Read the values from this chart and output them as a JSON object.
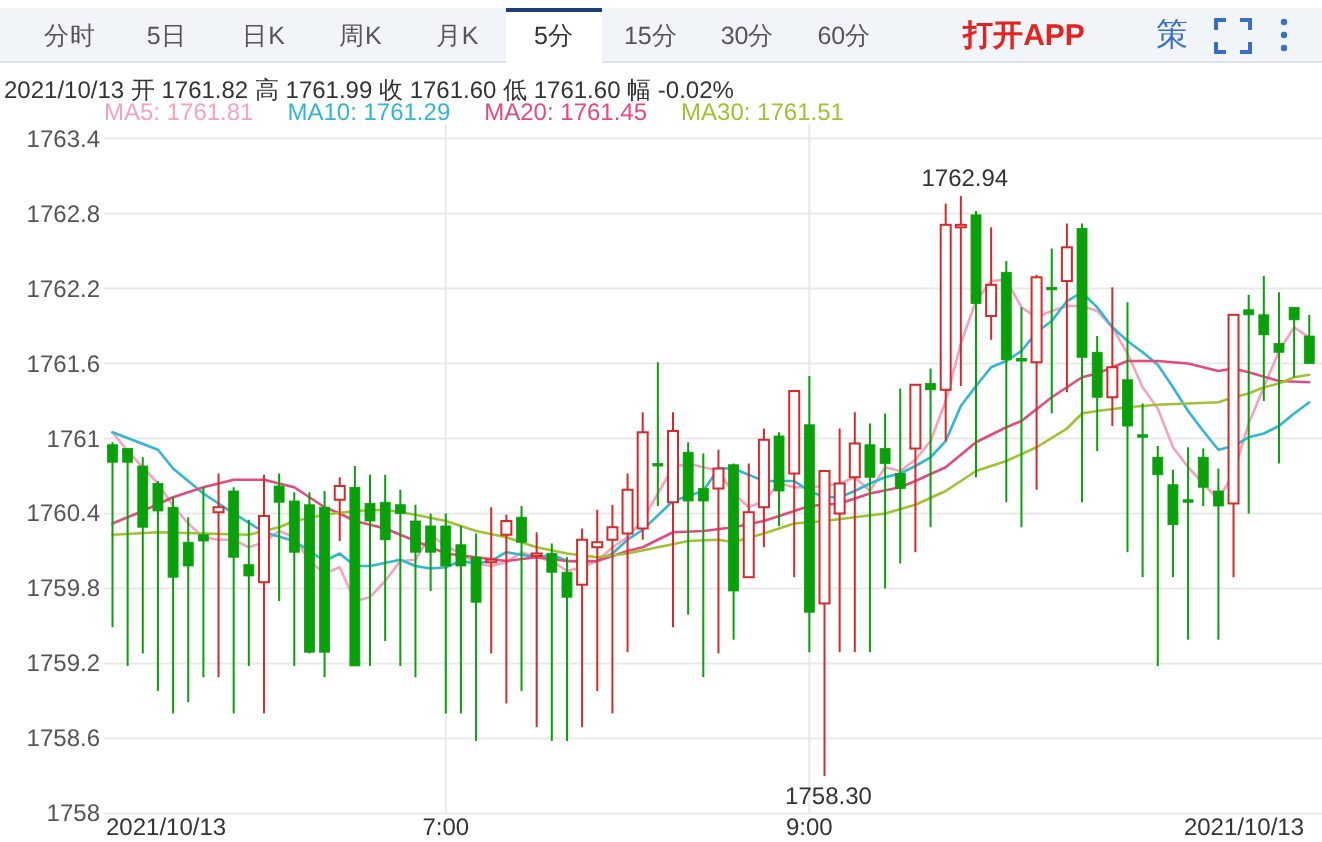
{
  "chart_data": {
    "type": "candlestick",
    "title": "2021/10/13 开 1761.82 高 1761.99 收 1761.60 低 1761.60 幅 -0.02%",
    "x": [
      5.1667,
      5.25,
      5.3333,
      5.4167,
      5.5,
      5.5833,
      5.6667,
      5.75,
      5.8333,
      5.9167,
      6,
      6.0833,
      6.1667,
      6.25,
      6.3333,
      6.4167,
      6.5,
      6.5833,
      6.6667,
      6.75,
      6.8333,
      6.9167,
      7,
      7.0833,
      7.1667,
      7.25,
      7.3333,
      7.4167,
      7.5,
      7.5833,
      7.6667,
      7.75,
      7.8333,
      7.9167,
      8,
      8.0833,
      8.1667,
      8.25,
      8.3333,
      8.4167,
      8.5,
      8.5833,
      8.6667,
      8.75,
      8.8333,
      8.9167,
      9,
      9.0833,
      9.1667,
      9.25,
      9.3333,
      9.4167,
      9.5,
      9.5833,
      9.6667,
      9.75,
      9.8333,
      9.9167,
      10,
      10.0833,
      10.1667,
      10.25,
      10.3333,
      10.4167,
      10.5,
      10.5833,
      10.6667,
      10.75,
      10.8333,
      10.9167,
      11,
      11.0833,
      11.1667,
      11.25,
      11.3333,
      11.4167,
      11.5,
      11.5833,
      11.6667,
      11.75
    ],
    "ohlc": [
      [
        1760.95,
        1760.97,
        1759.49,
        1760.81
      ],
      [
        1760.92,
        1760.92,
        1759.18,
        1760.81
      ],
      [
        1760.78,
        1760.85,
        1759.28,
        1760.29
      ],
      [
        1760.64,
        1760.66,
        1758.98,
        1760.42
      ],
      [
        1760.45,
        1760.53,
        1758.8,
        1759.89
      ],
      [
        1760.17,
        1760.37,
        1758.89,
        1759.98
      ],
      [
        1760.23,
        1760.61,
        1759.09,
        1760.18
      ],
      [
        1760.41,
        1760.72,
        1759.09,
        1760.45
      ],
      [
        1760.58,
        1760.61,
        1758.8,
        1760.05
      ],
      [
        1759.99,
        1760.35,
        1759.18,
        1759.9
      ],
      [
        1759.85,
        1760.71,
        1758.8,
        1760.38
      ],
      [
        1760.62,
        1760.72,
        1759.7,
        1760.49
      ],
      [
        1760.5,
        1760.57,
        1759.18,
        1760.09
      ],
      [
        1760.47,
        1760.57,
        1759.28,
        1759.29
      ],
      [
        1760.45,
        1760.58,
        1759.09,
        1759.29
      ],
      [
        1760.51,
        1760.69,
        1760.18,
        1760.62
      ],
      [
        1760.61,
        1760.78,
        1759.18,
        1759.18
      ],
      [
        1760.48,
        1760.71,
        1759.18,
        1760.34
      ],
      [
        1760.49,
        1760.71,
        1759.38,
        1760.19
      ],
      [
        1760.47,
        1760.59,
        1759.18,
        1760.4
      ],
      [
        1760.34,
        1760.47,
        1759.09,
        1760.09
      ],
      [
        1760.3,
        1760.4,
        1759.78,
        1760.09
      ],
      [
        1760.3,
        1760.4,
        1758.8,
        1759.98
      ],
      [
        1760.15,
        1760.3,
        1758.8,
        1759.98
      ],
      [
        1760.05,
        1760.24,
        1758.58,
        1759.69
      ],
      [
        1760.01,
        1760.45,
        1759.28,
        1760.03
      ],
      [
        1760.23,
        1760.39,
        1758.88,
        1760.34
      ],
      [
        1760.37,
        1760.46,
        1758.98,
        1760.17
      ],
      [
        1760.06,
        1760.25,
        1758.69,
        1760.08
      ],
      [
        1760.08,
        1760.16,
        1758.58,
        1759.93
      ],
      [
        1759.93,
        1760.05,
        1758.58,
        1759.73
      ],
      [
        1759.83,
        1760.28,
        1758.69,
        1760.19
      ],
      [
        1760.13,
        1760.43,
        1758.98,
        1760.17
      ],
      [
        1760.19,
        1760.47,
        1758.8,
        1760.29
      ],
      [
        1760.24,
        1760.72,
        1759.29,
        1760.59
      ],
      [
        1760.28,
        1761.21,
        1760.19,
        1761.05
      ],
      [
        1760.8,
        1761.61,
        1760.46,
        1760.78
      ],
      [
        1760.49,
        1761.21,
        1759.49,
        1761.06
      ],
      [
        1760.89,
        1760.97,
        1759.59,
        1760.5
      ],
      [
        1760.6,
        1760.88,
        1759.09,
        1760.5
      ],
      [
        1760.6,
        1760.91,
        1759.28,
        1760.76
      ],
      [
        1760.79,
        1760.8,
        1759.39,
        1759.78
      ],
      [
        1759.89,
        1760.8,
        1759.89,
        1760.41
      ],
      [
        1760.45,
        1761.08,
        1760.13,
        1760.99
      ],
      [
        1761.02,
        1761.05,
        1760.3,
        1760.58
      ],
      [
        1760.72,
        1761.38,
        1759.89,
        1761.38
      ],
      [
        1761.11,
        1761.5,
        1759.29,
        1759.61
      ],
      [
        1759.68,
        1760.74,
        1758.3,
        1760.74
      ],
      [
        1760.4,
        1761.08,
        1759.29,
        1760.64
      ],
      [
        1760.69,
        1761.21,
        1759.29,
        1760.96
      ],
      [
        1760.95,
        1761.12,
        1759.29,
        1760.69
      ],
      [
        1760.92,
        1761.2,
        1759.8,
        1760.8
      ],
      [
        1760.72,
        1761.4,
        1760.0,
        1760.6
      ],
      [
        1760.92,
        1761.43,
        1760.09,
        1761.43
      ],
      [
        1761.44,
        1761.56,
        1760.29,
        1761.39
      ],
      [
        1761.39,
        1762.88,
        1760.98,
        1762.71
      ],
      [
        1762.69,
        1762.94,
        1761.42,
        1762.71
      ],
      [
        1762.79,
        1762.82,
        1760.69,
        1762.08
      ],
      [
        1761.98,
        1762.69,
        1761.79,
        1762.23
      ],
      [
        1762.33,
        1762.42,
        1760.49,
        1761.63
      ],
      [
        1761.64,
        1762.05,
        1760.29,
        1761.62
      ],
      [
        1761.61,
        1762.31,
        1760.59,
        1762.29
      ],
      [
        1762.21,
        1762.52,
        1761.2,
        1762.19
      ],
      [
        1762.26,
        1762.72,
        1761.37,
        1762.53
      ],
      [
        1762.68,
        1762.72,
        1760.49,
        1761.65
      ],
      [
        1761.69,
        1761.82,
        1760.9,
        1761.33
      ],
      [
        1761.33,
        1762.21,
        1761.1,
        1761.57
      ],
      [
        1761.47,
        1762.09,
        1760.09,
        1761.1
      ],
      [
        1761.03,
        1761.28,
        1759.89,
        1761.01
      ],
      [
        1760.85,
        1760.94,
        1759.18,
        1760.71
      ],
      [
        1760.63,
        1760.75,
        1759.89,
        1760.31
      ],
      [
        1760.51,
        1760.93,
        1759.39,
        1760.49
      ],
      [
        1760.85,
        1760.92,
        1760.46,
        1760.61
      ],
      [
        1760.58,
        1760.76,
        1759.39,
        1760.46
      ],
      [
        1760.48,
        1761.99,
        1759.89,
        1761.99
      ],
      [
        1762.03,
        1762.15,
        1760.4,
        1761.99
      ],
      [
        1761.99,
        1762.3,
        1761.3,
        1761.83
      ],
      [
        1761.76,
        1762.17,
        1760.8,
        1761.69
      ],
      [
        1762.05,
        1762.05,
        1761.49,
        1761.95
      ],
      [
        1761.82,
        1761.99,
        1761.6,
        1761.6
      ]
    ],
    "colors": [
      "#0aa00a",
      "#0aa00a",
      "#0aa00a",
      "#0aa00a",
      "#0aa00a",
      "#0aa00a",
      "#0aa00a",
      "#d42a2a",
      "#0aa00a",
      "#0aa00a",
      "#d42a2a",
      "#0aa00a",
      "#0aa00a",
      "#0aa00a",
      "#0aa00a",
      "#d42a2a",
      "#0aa00a",
      "#0aa00a",
      "#0aa00a",
      "#0aa00a",
      "#0aa00a",
      "#0aa00a",
      "#0aa00a",
      "#0aa00a",
      "#0aa00a",
      "#d42a2a",
      "#d42a2a",
      "#0aa00a",
      "#d42a2a",
      "#0aa00a",
      "#0aa00a",
      "#d42a2a",
      "#d42a2a",
      "#d42a2a",
      "#d42a2a",
      "#d42a2a",
      "#0aa00a",
      "#d42a2a",
      "#0aa00a",
      "#0aa00a",
      "#d42a2a",
      "#0aa00a",
      "#d42a2a",
      "#d42a2a",
      "#0aa00a",
      "#d42a2a",
      "#0aa00a",
      "#d42a2a",
      "#d42a2a",
      "#d42a2a",
      "#0aa00a",
      "#0aa00a",
      "#0aa00a",
      "#d42a2a",
      "#0aa00a",
      "#d42a2a",
      "#d42a2a",
      "#0aa00a",
      "#d42a2a",
      "#0aa00a",
      "#0aa00a",
      "#d42a2a",
      "#0aa00a",
      "#d42a2a",
      "#0aa00a",
      "#0aa00a",
      "#d42a2a",
      "#0aa00a",
      "#0aa00a",
      "#0aa00a",
      "#0aa00a",
      "#0aa00a",
      "#0aa00a",
      "#0aa00a",
      "#d42a2a",
      "#0aa00a",
      "#0aa00a",
      "#0aa00a",
      "#0aa00a",
      "#0aa00a"
    ],
    "series": [
      {
        "name": "MA5: 1761.81",
        "type": "line",
        "color": "#f3a2bf",
        "values": [
          1761.05,
          1760.9,
          1760.77,
          1760.64,
          1760.46,
          1760.32,
          1760.21,
          1760.19,
          1760.19,
          1760.13,
          1760.17,
          1760.26,
          1760.21,
          1760.02,
          1759.92,
          1759.97,
          1759.7,
          1759.73,
          1759.86,
          1760.02,
          1760.03,
          1760.23,
          1760.14,
          1760.08,
          1760.0,
          1759.98,
          1760.01,
          1760.09,
          1760.05,
          1760.02,
          1759.94,
          1759.97,
          1760.02,
          1760.13,
          1760.21,
          1760.35,
          1760.56,
          1760.77,
          1760.8,
          1760.77,
          1760.74,
          1760.56,
          1760.45,
          1760.5,
          1760.64,
          1760.61,
          1760.61,
          1760.62,
          1760.64,
          1760.69,
          1760.58,
          1760.77,
          1760.74,
          1760.83,
          1760.98,
          1761.3,
          1761.76,
          1762.1,
          1762.26,
          1762.27,
          1762.05,
          1761.97,
          1762.02,
          1762.06,
          1762.06,
          1762.02,
          1761.89,
          1761.68,
          1761.41,
          1761.24,
          1760.93,
          1760.77,
          1760.64,
          1760.51,
          1760.72,
          1761.12,
          1761.41,
          1761.7,
          1761.89,
          1761.81
        ]
      },
      {
        "name": "MA10: 1761.29",
        "type": "line",
        "color": "#33b5d6",
        "x": [
          5.1667,
          5.4167,
          5.5,
          5.6667,
          5.8333,
          6,
          6.1667,
          6.3333,
          6.4167,
          6.5,
          6.5833,
          6.75,
          6.8333,
          6.9167,
          7,
          7.0833,
          7.1667,
          7.25,
          7.3333,
          7.4167,
          7.5,
          7.5833,
          7.6667,
          7.75,
          7.8333,
          7.9167,
          8,
          8.0833,
          8.25,
          8.4167,
          8.5,
          8.5833,
          8.75,
          8.9167,
          9,
          9.0833,
          9.1667,
          9.25,
          9.3333,
          9.4167,
          9.5,
          9.5833,
          9.6667,
          9.75,
          9.8333,
          9.9167,
          10,
          10.0833,
          10.1667,
          10.25,
          10.3333,
          10.4167,
          10.5,
          10.5833,
          10.6667,
          10.75,
          10.8333,
          10.9167,
          11,
          11.0833,
          11.1667,
          11.25,
          11.3333,
          11.4167,
          11.5,
          11.5833,
          11.6667,
          11.75
        ],
        "values": [
          1761.05,
          1760.91,
          1760.76,
          1760.56,
          1760.4,
          1760.25,
          1760.18,
          1760.02,
          1760.08,
          1759.98,
          1759.98,
          1760.03,
          1759.98,
          1759.96,
          1759.97,
          1760.02,
          1760.0,
          1760.02,
          1760.09,
          1760.07,
          1760.05,
          1760.07,
          1760.02,
          1760.01,
          1760.02,
          1760.08,
          1760.19,
          1760.27,
          1760.5,
          1760.58,
          1760.76,
          1760.76,
          1760.66,
          1760.66,
          1760.58,
          1760.53,
          1760.53,
          1760.58,
          1760.64,
          1760.69,
          1760.72,
          1760.78,
          1760.85,
          1760.98,
          1761.26,
          1761.42,
          1761.57,
          1761.62,
          1761.7,
          1761.85,
          1761.94,
          1762.1,
          1762.17,
          1762.05,
          1761.89,
          1761.78,
          1761.69,
          1761.59,
          1761.41,
          1761.22,
          1761.06,
          1760.91,
          1760.94,
          1761.01,
          1761.04,
          1761.1,
          1761.2,
          1761.29
        ]
      },
      {
        "name": "MA20: 1761.45",
        "type": "line",
        "color": "#e24b7b",
        "x": [
          5.1667,
          5.3333,
          5.5,
          5.6667,
          5.8333,
          6,
          6.1667,
          6.3333,
          6.4167,
          6.5,
          6.6667,
          6.8333,
          7,
          7.1667,
          7.3333,
          7.5,
          7.6667,
          7.8333,
          8,
          8.0833,
          8.25,
          8.4167,
          8.5833,
          8.75,
          8.9167,
          9,
          9.1667,
          9.3333,
          9.5,
          9.5833,
          9.75,
          9.9167,
          10.0833,
          10.1667,
          10.3333,
          10.5,
          10.5833,
          10.6667,
          10.75,
          10.9167,
          11.0833,
          11.25,
          11.3333,
          11.4167,
          11.5833,
          11.75
        ],
        "values": [
          1760.32,
          1760.42,
          1760.53,
          1760.61,
          1760.67,
          1760.67,
          1760.61,
          1760.45,
          1760.4,
          1760.34,
          1760.28,
          1760.18,
          1760.08,
          1760.05,
          1760.02,
          1760.05,
          1760.02,
          1760.02,
          1760.1,
          1760.13,
          1760.25,
          1760.26,
          1760.29,
          1760.34,
          1760.42,
          1760.46,
          1760.48,
          1760.56,
          1760.61,
          1760.66,
          1760.77,
          1760.97,
          1761.09,
          1761.14,
          1761.33,
          1761.49,
          1761.52,
          1761.57,
          1761.62,
          1761.62,
          1761.6,
          1761.54,
          1761.56,
          1761.53,
          1761.46,
          1761.45
        ]
      },
      {
        "name": "MA30: 1761.51",
        "type": "line",
        "color": "#9fc233",
        "x": [
          5.1667,
          5.4167,
          5.6667,
          5.9167,
          6.0833,
          6.1667,
          6.3333,
          6.5,
          6.6667,
          6.8333,
          7,
          7.1667,
          7.3333,
          7.5,
          7.6667,
          7.8333,
          8,
          8.1667,
          8.3333,
          8.5,
          8.5833,
          8.75,
          8.9167,
          9.0833,
          9.25,
          9.4167,
          9.5833,
          9.75,
          9.9167,
          10.0833,
          10.25,
          10.4167,
          10.5,
          10.5833,
          10.75,
          10.9167,
          11.0833,
          11.25,
          11.3333,
          11.4167,
          11.5,
          11.5833,
          11.6667,
          11.75
        ],
        "values": [
          1760.23,
          1760.25,
          1760.24,
          1760.23,
          1760.29,
          1760.34,
          1760.39,
          1760.42,
          1760.43,
          1760.39,
          1760.34,
          1760.26,
          1760.21,
          1760.13,
          1760.08,
          1760.05,
          1760.08,
          1760.13,
          1760.18,
          1760.19,
          1760.17,
          1760.24,
          1760.32,
          1760.34,
          1760.37,
          1760.4,
          1760.47,
          1760.58,
          1760.74,
          1760.82,
          1760.93,
          1761.08,
          1761.2,
          1761.22,
          1761.25,
          1761.27,
          1761.28,
          1761.29,
          1761.33,
          1761.36,
          1761.41,
          1761.44,
          1761.49,
          1761.51
        ]
      }
    ],
    "xlim": [
      5.12,
      11.82
    ],
    "xticks": [
      {
        "value": 7,
        "label": "7:00"
      },
      {
        "value": 9,
        "label": "9:00"
      }
    ],
    "ylim": [
      1758,
      1763.4
    ],
    "yticks": [
      1758,
      1758.6,
      1759.2,
      1759.8,
      1760.4,
      1761,
      1761.6,
      1762.2,
      1762.8,
      1763.4
    ],
    "grid": true,
    "legend": "top left",
    "annotations": [
      "分时",
      "5日",
      "日K",
      "周K",
      "月K",
      "5分",
      "15分",
      "30分",
      "60分",
      "打开APP",
      "策",
      "2021/10/13",
      "2021/10/13",
      {
        "text": "1762.94",
        "x": 9.8333,
        "y": 1762.94
      },
      {
        "text": "1758.30",
        "x": 9.0833,
        "y": 1758.3
      }
    ]
  }
}
